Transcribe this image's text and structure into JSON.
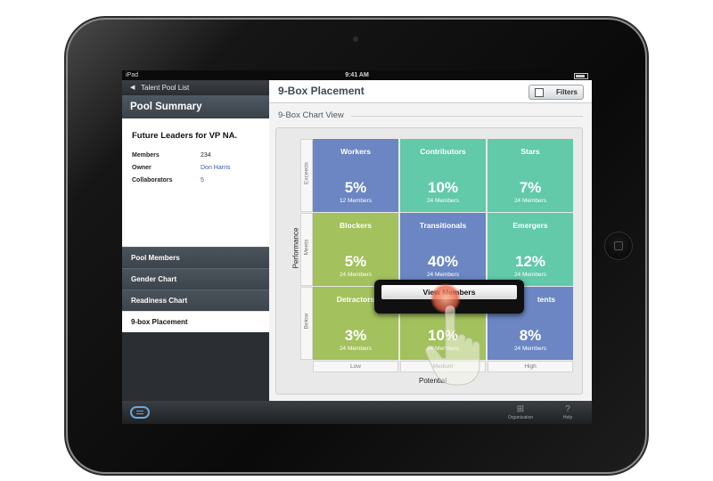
{
  "status_bar": {
    "carrier": "iPad",
    "time": "9:41 AM"
  },
  "left_pane": {
    "back_label": "Talent Pool List",
    "title": "Pool Summary",
    "pool_name": "Future Leaders for VP NA.",
    "meta": [
      {
        "key": "Members",
        "value": "234"
      },
      {
        "key": "Owner",
        "value": "Don Harris"
      },
      {
        "key": "Collaborators",
        "value": "5"
      }
    ],
    "nav": [
      {
        "label": "Pool Members"
      },
      {
        "label": "Gender Chart"
      },
      {
        "label": "Readiness Chart"
      },
      {
        "label": "9-box Placement"
      }
    ]
  },
  "right_pane": {
    "title": "9-Box Placement",
    "filters_label": "Filters",
    "subtitle": "9-Box Chart View",
    "y_axis_label": "Performance",
    "x_axis_label": "Potential",
    "rows": [
      "Exceeds",
      "Meets",
      "Below"
    ],
    "columns": [
      "Low",
      "Medium",
      "High"
    ],
    "cells": [
      {
        "name": "Workers",
        "percent": "5%",
        "members": "12 Members",
        "color": "#6b86c2"
      },
      {
        "name": "Contributors",
        "percent": "10%",
        "members": "24 Members",
        "color": "#62c9a9"
      },
      {
        "name": "Stars",
        "percent": "7%",
        "members": "24 Members",
        "color": "#62c9a9"
      },
      {
        "name": "Blockers",
        "percent": "5%",
        "members": "24 Members",
        "color": "#a3c15c"
      },
      {
        "name": "Transitionals",
        "percent": "40%",
        "members": "24 Members",
        "color": "#6b86c2"
      },
      {
        "name": "Emergers",
        "percent": "12%",
        "members": "24 Members",
        "color": "#62c9a9"
      },
      {
        "name": "Detractors",
        "percent": "3%",
        "members": "24 Members",
        "color": "#a3c15c"
      },
      {
        "name": "",
        "percent": "10%",
        "members": "24 Members",
        "color": "#a3c15c"
      },
      {
        "name": "tents",
        "percent": "8%",
        "members": "24 Members",
        "color": "#6b86c2"
      }
    ],
    "popover_action": "View Members"
  },
  "toolbar": {
    "items": [
      {
        "label": "Organization",
        "icon": "organization-icon"
      },
      {
        "label": "Help",
        "icon": "help-icon"
      }
    ]
  }
}
